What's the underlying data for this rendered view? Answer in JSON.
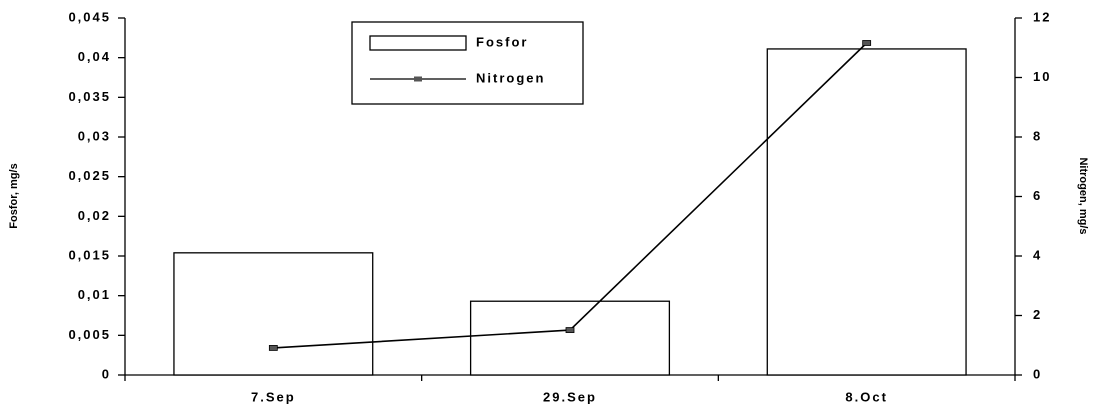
{
  "chart_data": {
    "type": "bar",
    "categories": [
      "7.Sep",
      "29.Sep",
      "8.Oct"
    ],
    "series": [
      {
        "name": "Fosfor",
        "color": "#ffffff",
        "values": [
          0.0154,
          0.0093,
          0.0411
        ]
      },
      {
        "name": "Nitrogen",
        "color": "#000000",
        "type": "line",
        "axis": "y2",
        "values": [
          0.91,
          1.51,
          11.16
        ]
      }
    ],
    "ylabel": "Fosfor, mg/s",
    "y2label": "Nitrogen, mg/s",
    "ylim": [
      0,
      0.045
    ],
    "yticks": [
      0,
      {
        "value": 0.005,
        "label": "0,005"
      },
      {
        "value": 0.01,
        "label": "0,01"
      },
      {
        "value": 0.015,
        "label": "0,015"
      },
      {
        "value": 0.02,
        "label": "0,02"
      },
      {
        "value": 0.025,
        "label": "0,025"
      },
      {
        "value": 0.03,
        "label": "0,03"
      },
      {
        "value": 0.035,
        "label": "0,035"
      },
      {
        "value": 0.04,
        "label": "0,04"
      },
      {
        "value": 0.045,
        "label": "0,045"
      }
    ],
    "y2lim": [
      0,
      12
    ],
    "y2ticks": [
      0,
      2,
      4,
      6,
      8,
      10,
      12
    ],
    "grid": false,
    "legend": "top"
  }
}
